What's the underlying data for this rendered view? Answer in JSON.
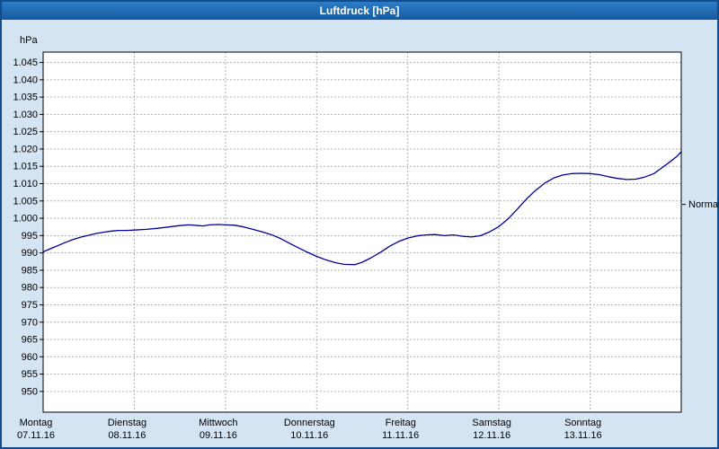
{
  "window": {
    "title": "Luftdruck [hPa]",
    "titlebar_color": "#1e6ab8",
    "background_color": "#d4e4f2",
    "border_color": "#0f4c8c"
  },
  "chart_data": {
    "type": "line",
    "title": "Luftdruck [hPa]",
    "ylabel": "hPa",
    "xlabel": "",
    "ylim": [
      944,
      1048
    ],
    "xlim_days": [
      0,
      7
    ],
    "grid": true,
    "legend_position": "none",
    "line_color": "#000099",
    "grid_color": "#b0b0b0",
    "plot_background": "#ffffff",
    "y_ticks": [
      {
        "value": 1045,
        "label": "1.045"
      },
      {
        "value": 1040,
        "label": "1.040"
      },
      {
        "value": 1035,
        "label": "1.035"
      },
      {
        "value": 1030,
        "label": "1.030"
      },
      {
        "value": 1025,
        "label": "1.025"
      },
      {
        "value": 1020,
        "label": "1.020"
      },
      {
        "value": 1015,
        "label": "1.015"
      },
      {
        "value": 1010,
        "label": "1.010"
      },
      {
        "value": 1005,
        "label": "1.005"
      },
      {
        "value": 1000,
        "label": "1.000"
      },
      {
        "value": 995,
        "label": "995"
      },
      {
        "value": 990,
        "label": "990"
      },
      {
        "value": 985,
        "label": "985"
      },
      {
        "value": 980,
        "label": "980"
      },
      {
        "value": 975,
        "label": "975"
      },
      {
        "value": 970,
        "label": "970"
      },
      {
        "value": 965,
        "label": "965"
      },
      {
        "value": 960,
        "label": "960"
      },
      {
        "value": 955,
        "label": "955"
      },
      {
        "value": 950,
        "label": "950"
      }
    ],
    "x_days": [
      {
        "day": 0,
        "name": "Montag",
        "date": "07.11.16"
      },
      {
        "day": 1,
        "name": "Dienstag",
        "date": "08.11.16"
      },
      {
        "day": 2,
        "name": "Mittwoch",
        "date": "09.11.16"
      },
      {
        "day": 3,
        "name": "Donnerstag",
        "date": "10.11.16"
      },
      {
        "day": 4,
        "name": "Freitag",
        "date": "11.11.16"
      },
      {
        "day": 5,
        "name": "Samstag",
        "date": "12.11.16"
      },
      {
        "day": 6,
        "name": "Sonntag",
        "date": "13.11.16"
      }
    ],
    "normal_marker": {
      "label": "Normal",
      "value": 1004
    },
    "series": [
      {
        "name": "Luftdruck",
        "x": [
          0.0,
          0.08,
          0.17,
          0.25,
          0.33,
          0.42,
          0.5,
          0.58,
          0.67,
          0.75,
          0.83,
          0.92,
          1.0,
          1.13,
          1.25,
          1.38,
          1.5,
          1.6,
          1.7,
          1.75,
          1.83,
          1.92,
          2.0,
          2.1,
          2.2,
          2.3,
          2.4,
          2.5,
          2.6,
          2.7,
          2.8,
          2.9,
          3.0,
          3.1,
          3.2,
          3.3,
          3.42,
          3.5,
          3.6,
          3.7,
          3.8,
          3.9,
          4.0,
          4.1,
          4.2,
          4.3,
          4.4,
          4.5,
          4.6,
          4.7,
          4.8,
          4.9,
          5.0,
          5.1,
          5.2,
          5.3,
          5.4,
          5.5,
          5.6,
          5.7,
          5.8,
          5.9,
          6.0,
          6.1,
          6.2,
          6.3,
          6.4,
          6.5,
          6.6,
          6.7,
          6.8,
          6.9,
          6.95,
          7.0
        ],
        "values": [
          990.3,
          991.2,
          992.2,
          993.1,
          993.9,
          994.6,
          995.1,
          995.6,
          996.0,
          996.3,
          996.5,
          996.5,
          996.6,
          996.8,
          997.1,
          997.5,
          997.9,
          998.1,
          997.9,
          997.8,
          998.1,
          998.2,
          998.1,
          998.0,
          997.5,
          996.8,
          996.1,
          995.3,
          994.2,
          992.8,
          991.5,
          990.2,
          989.0,
          988.0,
          987.2,
          986.7,
          986.6,
          987.3,
          988.6,
          990.2,
          991.9,
          993.3,
          994.3,
          994.9,
          995.2,
          995.3,
          995.0,
          995.2,
          994.8,
          994.6,
          995.0,
          996.1,
          997.6,
          999.8,
          1002.6,
          1005.5,
          1008.0,
          1010.1,
          1011.6,
          1012.5,
          1012.9,
          1013.0,
          1012.9,
          1012.6,
          1012.0,
          1011.5,
          1011.2,
          1011.3,
          1011.9,
          1012.9,
          1014.8,
          1016.8,
          1017.8,
          1019.2
        ]
      }
    ]
  }
}
